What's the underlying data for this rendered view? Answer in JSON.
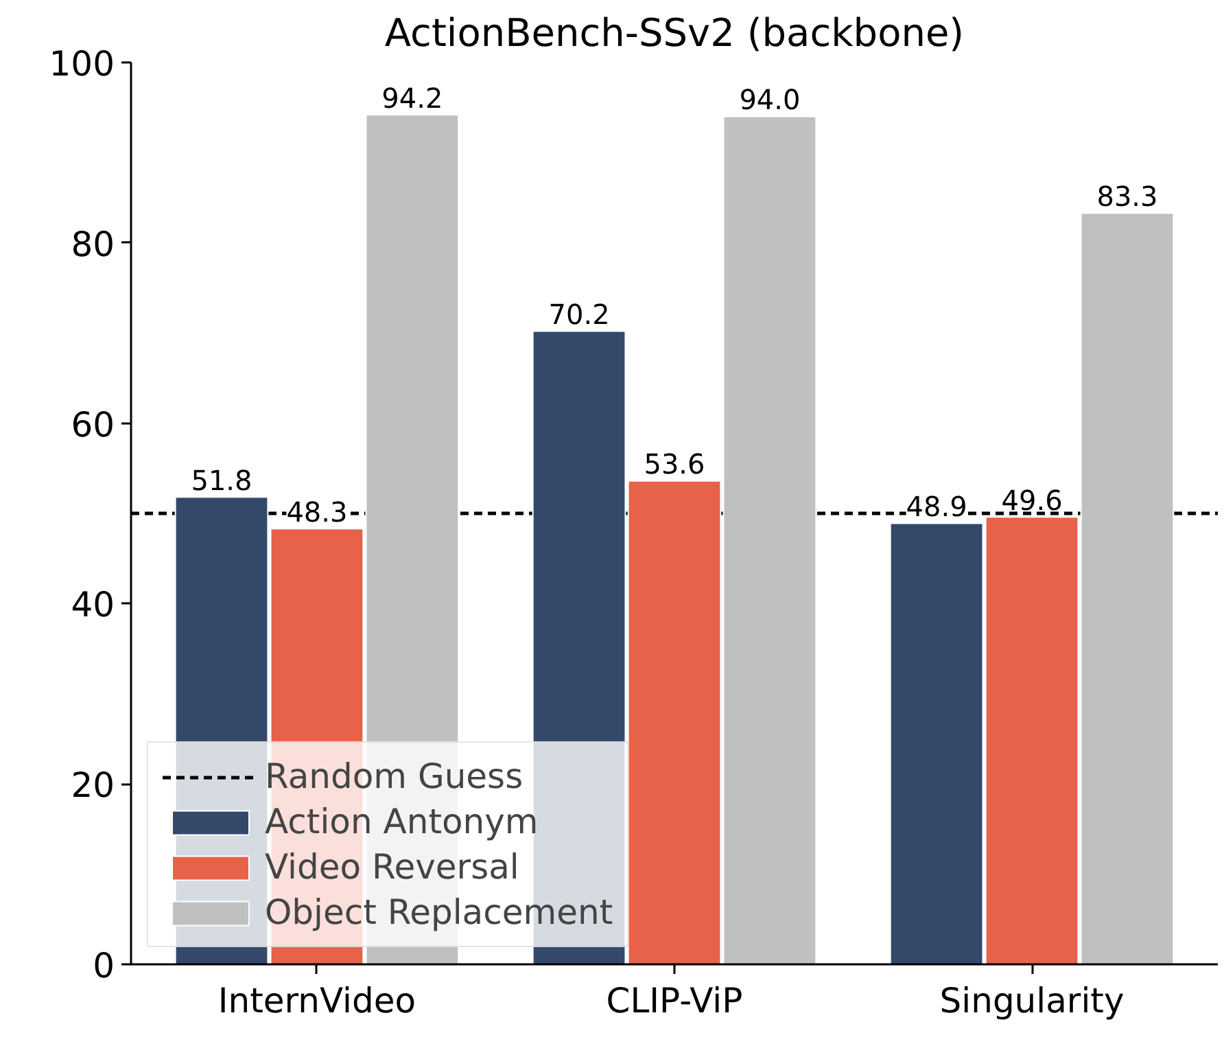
{
  "chart_data": {
    "type": "bar",
    "title": "ActionBench-SSv2 (backbone)",
    "categories": [
      "InternVideo",
      "CLIP-ViP",
      "Singularity"
    ],
    "series": [
      {
        "name": "Action Antonym",
        "color": "#34496a",
        "values": [
          51.8,
          70.2,
          48.9
        ],
        "value_labels": [
          "51.8",
          "70.2",
          "48.9"
        ]
      },
      {
        "name": "Video Reversal",
        "color": "#e8624a",
        "values": [
          48.3,
          53.6,
          49.6
        ],
        "value_labels": [
          "48.3",
          "53.6",
          "49.6"
        ]
      },
      {
        "name": "Object Replacement",
        "color": "#c0c0c0",
        "values": [
          94.2,
          94.0,
          83.3
        ],
        "value_labels": [
          "94.2",
          "94.0",
          "83.3"
        ]
      }
    ],
    "ylim": [
      0,
      100
    ],
    "yticks": [
      0,
      20,
      40,
      60,
      80,
      100
    ],
    "grid": false,
    "legend": "bottom left",
    "ref_lines": [
      {
        "axis": "y",
        "value": 50,
        "label": "Random Guess",
        "color": "#000000",
        "line_style": "dashed"
      }
    ]
  }
}
